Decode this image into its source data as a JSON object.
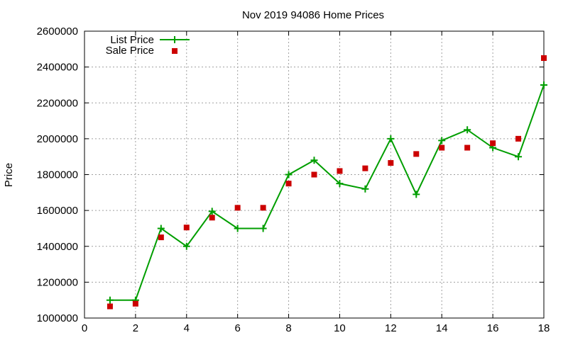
{
  "chart_data": {
    "type": "line",
    "title": "Nov 2019 94086 Home Prices",
    "xlabel": "",
    "ylabel": "Price",
    "xlim": [
      0,
      18
    ],
    "ylim": [
      1000000,
      2600000
    ],
    "xticks": [
      0,
      2,
      4,
      6,
      8,
      10,
      12,
      14,
      16,
      18
    ],
    "yticks": [
      1000000,
      1200000,
      1400000,
      1600000,
      1800000,
      2000000,
      2200000,
      2400000,
      2600000
    ],
    "grid": true,
    "legend_position": "top-left",
    "series": [
      {
        "name": "List Price",
        "style": "line-with-plus-markers",
        "color": "#009e00",
        "x": [
          1,
          2,
          3,
          4,
          5,
          6,
          7,
          8,
          9,
          10,
          11,
          12,
          13,
          14,
          15,
          16,
          17,
          18
        ],
        "y": [
          1100000,
          1100000,
          1500000,
          1400000,
          1595000,
          1500000,
          1500000,
          1800000,
          1880000,
          1750000,
          1720000,
          2000000,
          1690000,
          1990000,
          2050000,
          1950000,
          1900000,
          2300000
        ]
      },
      {
        "name": "Sale Price",
        "style": "square-markers",
        "color": "#cc0000",
        "x": [
          1,
          2,
          3,
          4,
          5,
          6,
          7,
          8,
          9,
          10,
          11,
          12,
          13,
          14,
          15,
          16,
          17,
          18
        ],
        "y": [
          1065000,
          1080000,
          1450000,
          1505000,
          1560000,
          1615000,
          1615000,
          1750000,
          1800000,
          1820000,
          1835000,
          1865000,
          1915000,
          1950000,
          1950000,
          1975000,
          2000000,
          2450000
        ]
      }
    ]
  }
}
